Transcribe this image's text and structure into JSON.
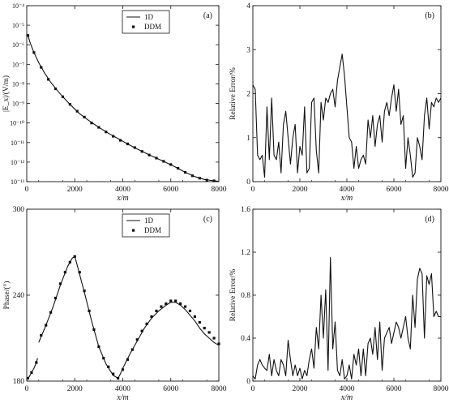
{
  "chart_data": [
    {
      "panel_label": "(a)",
      "type": "line",
      "ylabel": "|E_x|/(V/m)",
      "xlabel": "x/m",
      "yscale": "log",
      "xlim": [
        0,
        8000
      ],
      "ylim_exp": [
        -13,
        -4
      ],
      "xticks": [
        "0",
        "2000",
        "4000",
        "6000",
        "8000"
      ],
      "yticks": [
        "10^-13",
        "10^-12",
        "10^-11",
        "10^-10",
        "10^-9",
        "10^-8",
        "10^-7",
        "10^-6",
        "10^-5",
        "10^-4"
      ],
      "legend": {
        "placement": "top-center",
        "entries": [
          "1D",
          "DDM"
        ]
      },
      "series": [
        {
          "name": "1D",
          "style": "line",
          "x": [
            0,
            50,
            150,
            300,
            500,
            750,
            1000,
            1250,
            1500,
            1800,
            2200,
            2600,
            3000,
            3400,
            3800,
            4200,
            4600,
            5000,
            5400,
            5800,
            6200,
            6600,
            7000,
            7400,
            7800,
            8000
          ],
          "y": [
            3.5e-06,
            3e-06,
            1.2e-06,
            4e-07,
            1.2e-07,
            3.5e-08,
            1.2e-08,
            5e-09,
            2.2e-09,
            9e-10,
            3e-10,
            1.3e-10,
            6e-11,
            3e-11,
            1.6e-11,
            8.5e-12,
            4.7e-12,
            2.7e-12,
            1.6e-12,
            9.5e-13,
            5.5e-13,
            3e-13,
            1.8e-13,
            1.3e-13,
            1.1e-13,
            1.05e-13
          ]
        },
        {
          "name": "DDM",
          "style": "markers",
          "x": [
            50,
            300,
            600,
            900,
            1200,
            1500,
            1800,
            2100,
            2400,
            2700,
            3000,
            3300,
            3600,
            3900,
            4200,
            4500,
            4800,
            5100,
            5400,
            5700,
            6000,
            6300,
            6600,
            6900,
            7200,
            7500,
            7800
          ],
          "y": [
            3e-06,
            4e-07,
            7e-08,
            1.7e-08,
            5.6e-09,
            2.2e-09,
            9e-10,
            4e-10,
            2e-10,
            1e-10,
            6e-11,
            3.5e-11,
            2.1e-11,
            1.3e-11,
            8.5e-12,
            5.5e-12,
            3.5e-12,
            2.3e-12,
            1.6e-12,
            1.1e-12,
            7.5e-13,
            4.8e-13,
            3e-13,
            2e-13,
            1.5e-13,
            1.2e-13,
            1.1e-13
          ]
        }
      ]
    },
    {
      "panel_label": "(b)",
      "type": "line",
      "ylabel": "Relative Error/%",
      "xlabel": "x/m",
      "xlim": [
        0,
        8000
      ],
      "ylim": [
        0,
        4
      ],
      "xticks": [
        "0",
        "2000",
        "4000",
        "6000",
        "8000"
      ],
      "yticks": [
        "0",
        "1",
        "2",
        "3",
        "4"
      ],
      "series": [
        {
          "name": "",
          "x": [
            0,
            100,
            200,
            300,
            400,
            500,
            600,
            700,
            800,
            900,
            1000,
            1100,
            1200,
            1300,
            1400,
            1500,
            1600,
            1700,
            1800,
            1900,
            2000,
            2100,
            2200,
            2300,
            2400,
            2500,
            2600,
            2700,
            2800,
            2900,
            3000,
            3100,
            3200,
            3300,
            3400,
            3500,
            3600,
            3700,
            3800,
            3900,
            4000,
            4100,
            4200,
            4300,
            4400,
            4500,
            4600,
            4700,
            4800,
            4900,
            5000,
            5100,
            5200,
            5300,
            5400,
            5500,
            5600,
            5700,
            5800,
            5900,
            6000,
            6100,
            6200,
            6300,
            6400,
            6500,
            6600,
            6700,
            6800,
            6900,
            7000,
            7100,
            7200,
            7300,
            7400,
            7500,
            7600,
            7700,
            7800,
            7900,
            8000
          ],
          "y": [
            2.2,
            2.1,
            0.6,
            0.5,
            0.6,
            0.1,
            1.7,
            0.5,
            1.9,
            0.6,
            0.5,
            0.9,
            0.2,
            1.3,
            1.6,
            1.0,
            0.4,
            1.0,
            1.3,
            0.2,
            0.8,
            0.6,
            1.7,
            0.2,
            0.3,
            1.8,
            1.9,
            0.7,
            0.2,
            1.8,
            1.4,
            1.9,
            1.8,
            2.0,
            2.1,
            1.7,
            2.3,
            2.6,
            2.9,
            2.4,
            1.7,
            1.0,
            0.9,
            0.3,
            0.8,
            0.3,
            0.5,
            0.6,
            0.4,
            1.4,
            1.0,
            1.5,
            0.8,
            1.3,
            1.5,
            0.9,
            1.6,
            1.8,
            1.5,
            1.9,
            2.2,
            1.6,
            2.1,
            1.3,
            1.5,
            0.3,
            1.0,
            0.6,
            0.1,
            0.2,
            1.0,
            0.8,
            0.5,
            1.5,
            1.9,
            1.2,
            1.8,
            1.7,
            1.9,
            1.8,
            1.9
          ]
        }
      ]
    },
    {
      "panel_label": "(c)",
      "type": "line",
      "ylabel": "Phase/(°)",
      "xlabel": "x/m",
      "xlim": [
        0,
        8000
      ],
      "ylim": [
        180,
        300
      ],
      "xticks": [
        "0",
        "2000",
        "4000",
        "6000",
        "8000"
      ],
      "yticks": [
        "180",
        "240",
        "300"
      ],
      "legend": {
        "placement": "top-center",
        "entries": [
          "1D",
          "DDM"
        ]
      },
      "series": [
        {
          "name": "1D",
          "style": "line",
          "segments": [
            {
              "x": [
                0,
                100,
                200,
                300,
                400,
                450
              ],
              "y": [
                182,
                183,
                186,
                189,
                193,
                196
              ]
            },
            {
              "x": [
                500,
                800,
                1100,
                1400,
                1700,
                1900,
                2000,
                2100,
                2400,
                2700,
                3000,
                3300,
                3600,
                3800,
                3900,
                4000,
                4300,
                4600,
                4900,
                5200,
                5500,
                5800,
                6000,
                6200,
                6400,
                6600,
                6800,
                7000,
                7200,
                7400,
                7600,
                7800,
                8000
              ],
              "y": [
                207,
                219,
                232,
                247,
                260,
                266,
                267,
                261,
                242,
                222,
                204,
                192,
                184,
                182,
                185,
                189,
                199,
                208,
                217,
                224,
                229,
                233,
                235,
                235,
                233,
                230,
                226,
                222,
                217,
                213,
                210,
                207,
                205
              ]
            }
          ]
        },
        {
          "name": "DDM",
          "style": "markers",
          "x": [
            50,
            200,
            400,
            600,
            800,
            1000,
            1200,
            1400,
            1600,
            1800,
            2000,
            2200,
            2400,
            2600,
            2800,
            3000,
            3200,
            3400,
            3600,
            3800,
            4000,
            4200,
            4400,
            4600,
            4800,
            5000,
            5200,
            5400,
            5600,
            5800,
            6000,
            6200,
            6400,
            6600,
            6800,
            7000,
            7200,
            7400,
            7600,
            7800,
            8000
          ],
          "y": [
            182,
            186,
            193,
            212,
            219,
            228,
            238,
            248,
            256,
            263,
            267,
            256,
            243,
            229,
            216,
            204,
            196,
            190,
            185,
            182,
            188,
            195,
            202,
            209,
            215,
            220,
            225,
            229,
            232,
            234,
            236,
            236,
            234,
            232,
            229,
            225,
            221,
            217,
            214,
            210,
            206
          ]
        }
      ]
    },
    {
      "panel_label": "(d)",
      "type": "line",
      "ylabel": "Relative Error/%",
      "xlabel": "x/m",
      "xlim": [
        0,
        8000
      ],
      "ylim": [
        0,
        1.6
      ],
      "xticks": [
        "0",
        "2000",
        "4000",
        "6000",
        "8000"
      ],
      "yticks": [
        "0",
        "0.4",
        "0.8",
        "1.2",
        "1.6"
      ],
      "series": [
        {
          "name": "",
          "x": [
            0,
            100,
            200,
            300,
            400,
            500,
            600,
            700,
            800,
            900,
            1000,
            1100,
            1200,
            1300,
            1400,
            1500,
            1600,
            1700,
            1800,
            1900,
            2000,
            2100,
            2200,
            2300,
            2400,
            2500,
            2600,
            2700,
            2800,
            2900,
            3000,
            3100,
            3200,
            3300,
            3400,
            3500,
            3600,
            3700,
            3800,
            3900,
            4000,
            4100,
            4200,
            4300,
            4400,
            4500,
            4600,
            4700,
            4800,
            4900,
            5000,
            5100,
            5200,
            5300,
            5400,
            5500,
            5600,
            5700,
            5800,
            5900,
            6000,
            6100,
            6200,
            6300,
            6400,
            6500,
            6600,
            6700,
            6800,
            6900,
            7000,
            7100,
            7200,
            7300,
            7400,
            7500,
            7600,
            7700,
            7800,
            7900,
            8000
          ],
          "y": [
            0.05,
            0.02,
            0.15,
            0.2,
            0.15,
            0.12,
            0.1,
            0.25,
            0.05,
            0.2,
            0.1,
            0.05,
            0.2,
            0.15,
            0.05,
            0.38,
            0.2,
            0.05,
            0.15,
            0.05,
            0.12,
            0.02,
            0.1,
            0.05,
            0.2,
            0.3,
            0.12,
            0.5,
            0.3,
            0.8,
            0.4,
            0.85,
            0.1,
            1.15,
            0.3,
            0.55,
            0.1,
            0.05,
            0.2,
            0.02,
            0.05,
            0.15,
            0.02,
            0.25,
            0.15,
            0.3,
            0.05,
            0.3,
            0.05,
            0.35,
            0.4,
            0.25,
            0.5,
            0.2,
            0.55,
            0.1,
            0.4,
            0.45,
            0.5,
            0.35,
            0.45,
            0.55,
            0.5,
            0.4,
            0.5,
            0.6,
            0.4,
            0.3,
            0.8,
            0.5,
            0.95,
            1.05,
            1.0,
            0.4,
            0.98,
            0.9,
            1.0,
            0.6,
            0.65,
            0.6,
            0.6
          ]
        }
      ]
    }
  ]
}
